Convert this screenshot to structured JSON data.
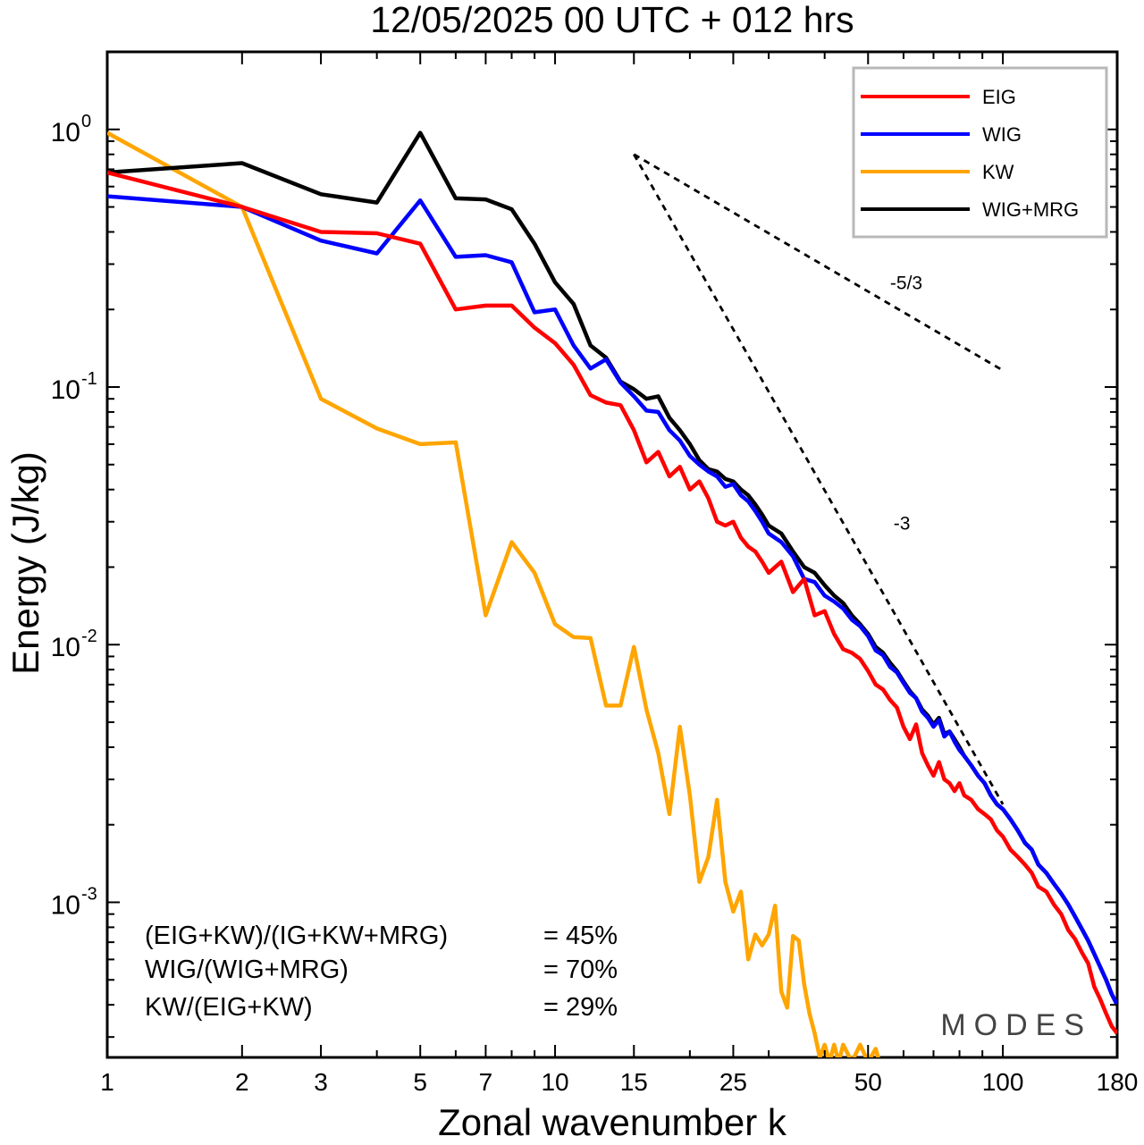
{
  "chart_data": {
    "type": "line",
    "title": "12/05/2025  00 UTC  + 012 hrs",
    "xlabel": "Zonal wavenumber k",
    "ylabel": "Energy (J/kg)",
    "xscale": "log",
    "yscale": "log",
    "xlim": [
      1,
      180
    ],
    "ylim": [
      0.00025,
      2.0
    ],
    "xticks": [
      1,
      2,
      3,
      5,
      7,
      10,
      15,
      25,
      50,
      100,
      180
    ],
    "xtick_labels": [
      "1",
      "2",
      "3",
      "5",
      "7",
      "10",
      "15",
      "25",
      "50",
      "100",
      "180"
    ],
    "yticks": [
      {
        "value": 1,
        "base": "10",
        "exp": "0"
      },
      {
        "value": 0.1,
        "base": "10",
        "exp": "-1"
      },
      {
        "value": 0.01,
        "base": "10",
        "exp": "-2"
      },
      {
        "value": 0.001,
        "base": "10",
        "exp": "-3"
      }
    ],
    "grid": false,
    "legend_position": "top-right",
    "series": [
      {
        "name": "EIG",
        "color": "#ff0000",
        "points": [
          [
            1,
            0.68
          ],
          [
            2,
            0.5
          ],
          [
            3,
            0.4
          ],
          [
            4,
            0.395
          ],
          [
            5,
            0.36
          ],
          [
            6,
            0.2
          ],
          [
            7,
            0.207
          ],
          [
            8,
            0.207
          ],
          [
            9,
            0.17
          ],
          [
            10,
            0.148
          ],
          [
            11,
            0.122
          ],
          [
            12,
            0.093
          ],
          [
            13,
            0.087
          ],
          [
            14,
            0.085
          ],
          [
            15,
            0.068
          ],
          [
            16,
            0.051
          ],
          [
            17,
            0.056
          ],
          [
            18,
            0.045
          ],
          [
            19,
            0.049
          ],
          [
            20,
            0.04
          ],
          [
            21,
            0.043
          ],
          [
            22,
            0.037
          ],
          [
            23,
            0.03
          ],
          [
            24,
            0.029
          ],
          [
            25,
            0.03
          ],
          [
            26,
            0.026
          ],
          [
            27,
            0.024
          ],
          [
            28,
            0.023
          ],
          [
            29,
            0.021
          ],
          [
            30,
            0.019
          ],
          [
            32,
            0.021
          ],
          [
            34,
            0.016
          ],
          [
            36,
            0.018
          ],
          [
            38,
            0.013
          ],
          [
            40,
            0.0135
          ],
          [
            42,
            0.011
          ],
          [
            44,
            0.0096
          ],
          [
            46,
            0.0093
          ],
          [
            48,
            0.0088
          ],
          [
            50,
            0.0079
          ],
          [
            52,
            0.007
          ],
          [
            54,
            0.0067
          ],
          [
            56,
            0.0061
          ],
          [
            58,
            0.0057
          ],
          [
            60,
            0.0048
          ],
          [
            62,
            0.0043
          ],
          [
            64,
            0.0049
          ],
          [
            66,
            0.0038
          ],
          [
            68,
            0.0034
          ],
          [
            70,
            0.0031
          ],
          [
            72,
            0.0035
          ],
          [
            74,
            0.003
          ],
          [
            76,
            0.0029
          ],
          [
            78,
            0.0027
          ],
          [
            80,
            0.0029
          ],
          [
            82,
            0.0026
          ],
          [
            85,
            0.0025
          ],
          [
            88,
            0.0023
          ],
          [
            91,
            0.0022
          ],
          [
            94,
            0.0021
          ],
          [
            97,
            0.0019
          ],
          [
            100,
            0.0018
          ],
          [
            104,
            0.0016
          ],
          [
            108,
            0.0015
          ],
          [
            112,
            0.0014
          ],
          [
            116,
            0.0013
          ],
          [
            120,
            0.00115
          ],
          [
            125,
            0.0011
          ],
          [
            130,
            0.00098
          ],
          [
            135,
            0.0009
          ],
          [
            140,
            0.00078
          ],
          [
            145,
            0.00072
          ],
          [
            150,
            0.00064
          ],
          [
            155,
            0.00058
          ],
          [
            160,
            0.00047
          ],
          [
            165,
            0.00042
          ],
          [
            170,
            0.00037
          ],
          [
            175,
            0.00033
          ],
          [
            180,
            0.00031
          ]
        ]
      },
      {
        "name": "WIG",
        "color": "#0000ff",
        "points": [
          [
            1,
            0.55
          ],
          [
            2,
            0.5
          ],
          [
            3,
            0.37
          ],
          [
            4,
            0.33
          ],
          [
            5,
            0.53
          ],
          [
            6,
            0.32
          ],
          [
            7,
            0.325
          ],
          [
            8,
            0.305
          ],
          [
            9,
            0.195
          ],
          [
            10,
            0.2
          ],
          [
            11,
            0.145
          ],
          [
            12,
            0.118
          ],
          [
            13,
            0.128
          ],
          [
            14,
            0.104
          ],
          [
            15,
            0.092
          ],
          [
            16,
            0.081
          ],
          [
            17,
            0.08
          ],
          [
            18,
            0.068
          ],
          [
            19,
            0.062
          ],
          [
            20,
            0.054
          ],
          [
            21,
            0.05
          ],
          [
            22,
            0.047
          ],
          [
            23,
            0.045
          ],
          [
            24,
            0.041
          ],
          [
            25,
            0.042
          ],
          [
            26,
            0.038
          ],
          [
            27,
            0.036
          ],
          [
            28,
            0.033
          ],
          [
            29,
            0.03
          ],
          [
            30,
            0.027
          ],
          [
            32,
            0.025
          ],
          [
            34,
            0.022
          ],
          [
            36,
            0.018
          ],
          [
            38,
            0.0175
          ],
          [
            40,
            0.0155
          ],
          [
            42,
            0.0147
          ],
          [
            44,
            0.0138
          ],
          [
            46,
            0.0125
          ],
          [
            48,
            0.0118
          ],
          [
            50,
            0.0108
          ],
          [
            52,
            0.0095
          ],
          [
            54,
            0.0091
          ],
          [
            56,
            0.0082
          ],
          [
            58,
            0.0078
          ],
          [
            60,
            0.0071
          ],
          [
            62,
            0.0065
          ],
          [
            64,
            0.0062
          ],
          [
            66,
            0.0055
          ],
          [
            68,
            0.0052
          ],
          [
            70,
            0.0048
          ],
          [
            72,
            0.0051
          ],
          [
            74,
            0.0044
          ],
          [
            76,
            0.0046
          ],
          [
            78,
            0.0042
          ],
          [
            80,
            0.0039
          ],
          [
            82,
            0.0037
          ],
          [
            85,
            0.0034
          ],
          [
            88,
            0.0031
          ],
          [
            91,
            0.0029
          ],
          [
            94,
            0.0026
          ],
          [
            97,
            0.0024
          ],
          [
            100,
            0.0023
          ],
          [
            104,
            0.0021
          ],
          [
            108,
            0.0019
          ],
          [
            112,
            0.0017
          ],
          [
            116,
            0.0016
          ],
          [
            120,
            0.0014
          ],
          [
            125,
            0.0013
          ],
          [
            130,
            0.00118
          ],
          [
            135,
            0.00108
          ],
          [
            140,
            0.00098
          ],
          [
            145,
            0.00088
          ],
          [
            150,
            0.00079
          ],
          [
            155,
            0.00071
          ],
          [
            160,
            0.00063
          ],
          [
            165,
            0.00056
          ],
          [
            170,
            0.0005
          ],
          [
            175,
            0.00044
          ],
          [
            180,
            0.0004
          ]
        ]
      },
      {
        "name": "KW",
        "color": "#ffa500",
        "points": [
          [
            1,
            0.97
          ],
          [
            2,
            0.5
          ],
          [
            3,
            0.09
          ],
          [
            4,
            0.069
          ],
          [
            5,
            0.06
          ],
          [
            6,
            0.061
          ],
          [
            7,
            0.013
          ],
          [
            8,
            0.025
          ],
          [
            9,
            0.019
          ],
          [
            10,
            0.012
          ],
          [
            11,
            0.0107
          ],
          [
            12,
            0.0106
          ],
          [
            13,
            0.0058
          ],
          [
            14,
            0.0058
          ],
          [
            15,
            0.0098
          ],
          [
            16,
            0.0056
          ],
          [
            17,
            0.0038
          ],
          [
            18,
            0.0022
          ],
          [
            19,
            0.0048
          ],
          [
            20,
            0.0026
          ],
          [
            21,
            0.0012
          ],
          [
            22,
            0.0015
          ],
          [
            23,
            0.0025
          ],
          [
            24,
            0.0012
          ],
          [
            25,
            0.00092
          ],
          [
            26,
            0.0011
          ],
          [
            27,
            0.0006
          ],
          [
            28,
            0.00075
          ],
          [
            29,
            0.00068
          ],
          [
            30,
            0.00075
          ],
          [
            31,
            0.00097
          ],
          [
            32,
            0.00045
          ],
          [
            33,
            0.00039
          ],
          [
            34,
            0.00074
          ],
          [
            35,
            0.00071
          ],
          [
            36,
            0.00048
          ],
          [
            37,
            0.00037
          ],
          [
            38,
            0.00031
          ],
          [
            39,
            0.00025
          ],
          [
            40,
            0.00028
          ],
          [
            41,
            0.00024
          ],
          [
            42,
            0.00028
          ],
          [
            43,
            0.00024
          ],
          [
            44,
            0.00028
          ],
          [
            46,
            0.00024
          ],
          [
            48,
            0.00028
          ],
          [
            50,
            0.00024
          ],
          [
            52,
            0.00027
          ],
          [
            53,
            0.00024
          ]
        ]
      },
      {
        "name": "WIG+MRG",
        "color": "#000000",
        "points": [
          [
            1,
            0.68
          ],
          [
            2,
            0.74
          ],
          [
            3,
            0.56
          ],
          [
            4,
            0.52
          ],
          [
            5,
            0.97
          ],
          [
            6,
            0.54
          ],
          [
            7,
            0.535
          ],
          [
            8,
            0.49
          ],
          [
            9,
            0.36
          ],
          [
            10,
            0.255
          ],
          [
            11,
            0.21
          ],
          [
            12,
            0.145
          ],
          [
            13,
            0.13
          ],
          [
            14,
            0.105
          ],
          [
            15,
            0.098
          ],
          [
            16,
            0.09
          ],
          [
            17,
            0.092
          ],
          [
            18,
            0.076
          ],
          [
            19,
            0.068
          ],
          [
            20,
            0.06
          ],
          [
            21,
            0.052
          ],
          [
            22,
            0.048
          ],
          [
            23,
            0.047
          ],
          [
            24,
            0.044
          ],
          [
            25,
            0.043
          ],
          [
            26,
            0.04
          ],
          [
            27,
            0.038
          ],
          [
            28,
            0.035
          ],
          [
            29,
            0.032
          ],
          [
            30,
            0.029
          ],
          [
            32,
            0.027
          ],
          [
            34,
            0.023
          ],
          [
            36,
            0.02
          ],
          [
            38,
            0.019
          ],
          [
            40,
            0.017
          ],
          [
            42,
            0.0155
          ],
          [
            44,
            0.0145
          ],
          [
            46,
            0.013
          ],
          [
            48,
            0.012
          ],
          [
            50,
            0.011
          ],
          [
            52,
            0.0098
          ],
          [
            54,
            0.0093
          ],
          [
            56,
            0.0085
          ],
          [
            58,
            0.0079
          ],
          [
            60,
            0.0072
          ],
          [
            62,
            0.0066
          ],
          [
            64,
            0.0062
          ],
          [
            66,
            0.0056
          ],
          [
            68,
            0.0053
          ],
          [
            70,
            0.0049
          ],
          [
            72,
            0.0052
          ],
          [
            74,
            0.0045
          ],
          [
            76,
            0.0046
          ],
          [
            78,
            0.0043
          ],
          [
            80,
            0.004
          ],
          [
            82,
            0.0037
          ],
          [
            85,
            0.0034
          ],
          [
            88,
            0.0031
          ],
          [
            91,
            0.0029
          ],
          [
            94,
            0.0026
          ],
          [
            97,
            0.0024
          ],
          [
            100,
            0.0023
          ],
          [
            104,
            0.0021
          ],
          [
            108,
            0.0019
          ],
          [
            112,
            0.0017
          ],
          [
            116,
            0.0016
          ],
          [
            120,
            0.0014
          ],
          [
            125,
            0.0013
          ],
          [
            130,
            0.00118
          ],
          [
            135,
            0.00108
          ],
          [
            140,
            0.00098
          ],
          [
            145,
            0.00088
          ],
          [
            150,
            0.00079
          ],
          [
            155,
            0.00071
          ],
          [
            160,
            0.00063
          ],
          [
            165,
            0.00056
          ],
          [
            170,
            0.0005
          ],
          [
            175,
            0.00044
          ],
          [
            180,
            0.0004
          ]
        ]
      }
    ],
    "reference_lines": [
      {
        "label": "-5/3",
        "points": [
          [
            15,
            0.8
          ],
          [
            100,
            0.116
          ]
        ],
        "label_at": [
          56,
          0.24
        ]
      },
      {
        "label": "-3",
        "points": [
          [
            15,
            0.8
          ],
          [
            100,
            0.0024
          ]
        ],
        "label_at": [
          57,
          0.028
        ]
      }
    ],
    "annotations": [
      {
        "text": "(EIG+KW)/(IG+KW+MRG)",
        "value": "= 45%"
      },
      {
        "text": "WIG/(WIG+MRG)",
        "value": "= 70%"
      },
      {
        "text": "KW/(EIG+KW)",
        "value": "= 29%"
      }
    ],
    "watermark": "MODES"
  }
}
